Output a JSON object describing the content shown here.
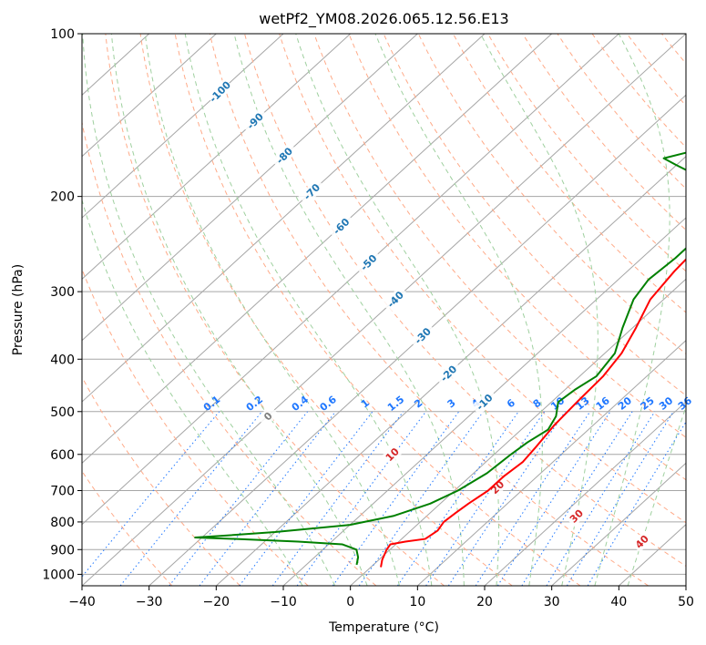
{
  "chart_data": {
    "type": "line",
    "diagram": "skew-t log-p",
    "title": "wetPf2_YM08.2026.065.12.56.E13",
    "xlabel": "Temperature (°C)",
    "ylabel": "Pressure (hPa)",
    "xlim": [
      -40,
      50
    ],
    "ylim": [
      1050,
      100
    ],
    "y_scale": "log",
    "grid": true,
    "x_ticks": [
      -40,
      -30,
      -20,
      -10,
      0,
      10,
      20,
      30,
      40,
      50
    ],
    "y_ticks": [
      100,
      200,
      300,
      400,
      500,
      600,
      700,
      800,
      900,
      1000
    ],
    "colors": {
      "temperature": "#ff0000",
      "dewpoint": "#008000",
      "isotherm": "#a6a6a6",
      "dry_adiabat": "#ffaa88",
      "moist_adiabat": "#9fd09f",
      "mixing_ratio": "#1f77ff",
      "isotherm_label": "#1f77b4",
      "wetbulb_label": "#d62728"
    },
    "series": [
      {
        "key": "temperature",
        "points": [
          [
            1.5,
            970
          ],
          [
            0.5,
            940
          ],
          [
            -0.5,
            900
          ],
          [
            -0.8,
            880
          ],
          [
            1.0,
            870
          ],
          [
            3.5,
            860
          ],
          [
            4.0,
            830
          ],
          [
            3.5,
            800
          ],
          [
            3.8,
            770
          ],
          [
            4.2,
            740
          ],
          [
            5.0,
            700
          ],
          [
            5.0,
            660
          ],
          [
            5.5,
            620
          ],
          [
            5.0,
            580
          ],
          [
            4.2,
            530
          ],
          [
            3.8,
            480
          ],
          [
            3.5,
            430
          ],
          [
            2.5,
            390
          ],
          [
            0.5,
            350
          ],
          [
            -2.0,
            310
          ],
          [
            -3.0,
            275
          ],
          [
            -3.5,
            245
          ],
          [
            -4.0,
            220
          ],
          [
            -1.0,
            205
          ],
          [
            5.0,
            190
          ],
          [
            12.0,
            175
          ],
          [
            14.0,
            160
          ],
          [
            14.5,
            150
          ],
          [
            16.0,
            142
          ],
          [
            19.0,
            132
          ],
          [
            21.0,
            120
          ],
          [
            24.0,
            110
          ],
          [
            26.0,
            100
          ]
        ]
      },
      {
        "key": "dewpoint",
        "points": [
          [
            -2.5,
            960
          ],
          [
            -3.5,
            930
          ],
          [
            -5.0,
            900
          ],
          [
            -8.0,
            880
          ],
          [
            -15.0,
            870
          ],
          [
            -25.0,
            860
          ],
          [
            -31.0,
            855
          ],
          [
            -28.0,
            850
          ],
          [
            -20.0,
            835
          ],
          [
            -10.0,
            810
          ],
          [
            -5.0,
            780
          ],
          [
            -1.5,
            740
          ],
          [
            0.5,
            700
          ],
          [
            2.0,
            650
          ],
          [
            2.5,
            600
          ],
          [
            3.0,
            570
          ],
          [
            4.0,
            540
          ],
          [
            3.0,
            510
          ],
          [
            1.0,
            480
          ],
          [
            1.5,
            455
          ],
          [
            2.5,
            430
          ],
          [
            1.5,
            390
          ],
          [
            -1.5,
            350
          ],
          [
            -4.5,
            310
          ],
          [
            -5.5,
            285
          ],
          [
            -5.0,
            260
          ],
          [
            -5.0,
            240
          ],
          [
            -6.0,
            220
          ],
          [
            -9.0,
            205
          ],
          [
            -12.0,
            195
          ],
          [
            -14.0,
            185
          ],
          [
            -20.0,
            175
          ],
          [
            -23.0,
            170
          ],
          [
            -20.0,
            165
          ],
          [
            -13.0,
            160
          ],
          [
            -7.0,
            150
          ],
          [
            -6.0,
            140
          ],
          [
            -6.0,
            130
          ],
          [
            -5.5,
            120
          ],
          [
            -3.0,
            110
          ],
          [
            -0.5,
            100
          ]
        ]
      }
    ],
    "isotherm_labels": [
      {
        "text": "-100",
        "t": -100,
        "p": 128
      },
      {
        "text": "-90",
        "t": -90,
        "p": 145
      },
      {
        "text": "-80",
        "t": -80,
        "p": 168
      },
      {
        "text": "-70",
        "t": -70,
        "p": 196
      },
      {
        "text": "-60",
        "t": -60,
        "p": 227
      },
      {
        "text": "-50",
        "t": -50,
        "p": 265
      },
      {
        "text": "-40",
        "t": -40,
        "p": 310
      },
      {
        "text": "-30",
        "t": -30,
        "p": 362
      },
      {
        "text": "-20",
        "t": -20,
        "p": 425
      },
      {
        "text": "-10",
        "t": -10,
        "p": 480
      }
    ],
    "mixing_ratio_labels": [
      "0.1",
      "0.2",
      "0.4",
      "0.6",
      "1",
      "1.5",
      "2",
      "3",
      "4",
      "6",
      "8",
      "10",
      "13",
      "16",
      "20",
      "25",
      "30",
      "36"
    ],
    "mixing_ratio_values": [
      0.1,
      0.2,
      0.4,
      0.6,
      1,
      1.5,
      2,
      3,
      4,
      6,
      8,
      10,
      13,
      16,
      20,
      25,
      30,
      36
    ],
    "moist_adiabat_labels": [
      {
        "text": "0",
        "theta_w": 0,
        "p": 510
      },
      {
        "text": "10",
        "theta_w": 10,
        "p": 600
      },
      {
        "text": "20",
        "theta_w": 20,
        "p": 690
      },
      {
        "text": "30",
        "theta_w": 30,
        "p": 780
      },
      {
        "text": "40",
        "theta_w": 40,
        "p": 870
      }
    ],
    "dry_adiabats": [
      -30,
      -20,
      -10,
      0,
      10,
      20,
      30,
      40,
      50,
      60,
      70,
      80,
      90,
      100,
      110,
      120,
      130,
      140,
      150,
      160,
      170,
      180,
      190,
      200
    ],
    "moist_adiabats": [
      -10,
      -5,
      0,
      5,
      10,
      15,
      20,
      25,
      30,
      35,
      40
    ]
  }
}
